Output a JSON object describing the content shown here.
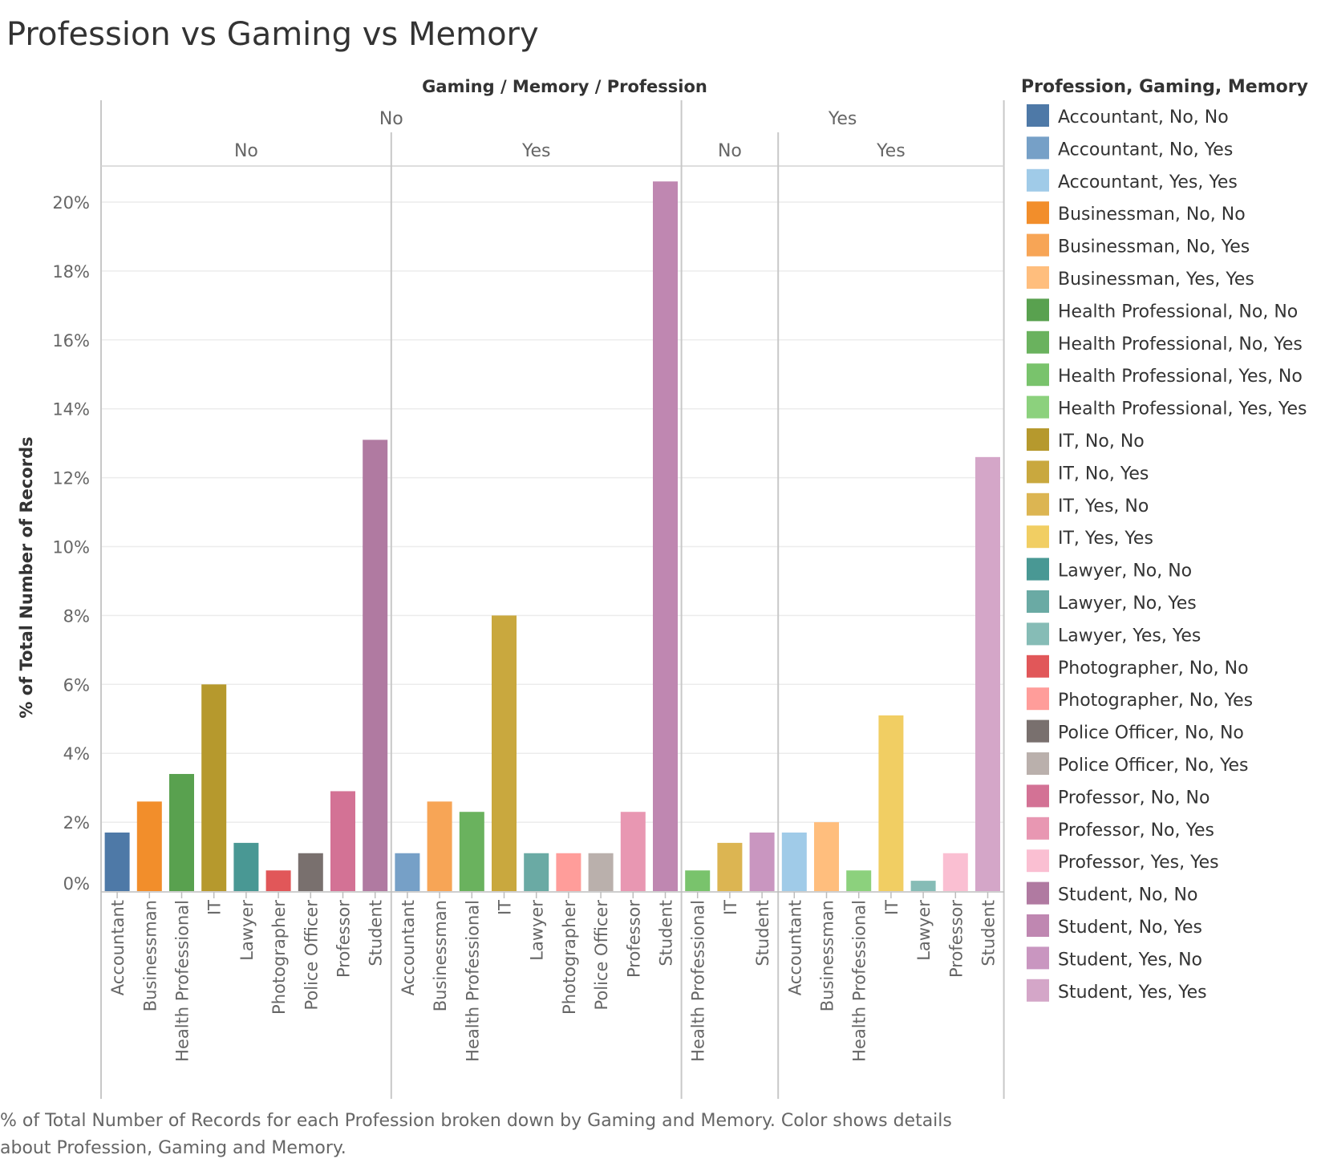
{
  "title": "Profession vs Gaming vs Memory",
  "header": {
    "column_title": "Gaming  /  Memory  /  Profession"
  },
  "caption": {
    "line1": "% of Total Number of Records for each Profession broken down by Gaming and Memory.  Color shows details",
    "line2": "about Profession, Gaming and Memory."
  },
  "legend_title": "Profession, Gaming, Memory",
  "chart_data": {
    "type": "bar",
    "title": "Profession vs Gaming vs Memory",
    "ylabel": "% of Total Number of Records",
    "xlabel": "",
    "ylim": [
      0,
      21
    ],
    "y_ticks": [
      0,
      2,
      4,
      6,
      8,
      10,
      12,
      14,
      16,
      18,
      20
    ],
    "y_tick_labels": [
      "0%",
      "2%",
      "4%",
      "6%",
      "8%",
      "10%",
      "12%",
      "14%",
      "16%",
      "18%",
      "20%"
    ],
    "grid": true,
    "legend_position": "right",
    "column_header_levels": [
      "Gaming",
      "Memory",
      "Profession"
    ],
    "panels": [
      {
        "gaming": "No",
        "memory": "No",
        "bars": [
          {
            "profession": "Accountant",
            "value": 1.7,
            "color": "#4e79a7"
          },
          {
            "profession": "Businessman",
            "value": 2.6,
            "color": "#f28e2b"
          },
          {
            "profession": "Health Professional",
            "value": 3.4,
            "color": "#59a14f"
          },
          {
            "profession": "IT",
            "value": 6.0,
            "color": "#b6992d"
          },
          {
            "profession": "Lawyer",
            "value": 1.4,
            "color": "#499894"
          },
          {
            "profession": "Photographer",
            "value": 0.6,
            "color": "#e15759"
          },
          {
            "profession": "Police Officer",
            "value": 1.1,
            "color": "#79706e"
          },
          {
            "profession": "Professor",
            "value": 2.9,
            "color": "#d37295"
          },
          {
            "profession": "Student",
            "value": 13.1,
            "color": "#b07aa1"
          }
        ]
      },
      {
        "gaming": "No",
        "memory": "Yes",
        "bars": [
          {
            "profession": "Accountant",
            "value": 1.1,
            "color": "#76a0c7"
          },
          {
            "profession": "Businessman",
            "value": 2.6,
            "color": "#f7a556"
          },
          {
            "profession": "Health Professional",
            "value": 2.3,
            "color": "#6ab25e"
          },
          {
            "profession": "IT",
            "value": 8.0,
            "color": "#c9a83e"
          },
          {
            "profession": "Lawyer",
            "value": 1.1,
            "color": "#6aaaa4"
          },
          {
            "profession": "Photographer",
            "value": 1.1,
            "color": "#ff9d9a"
          },
          {
            "profession": "Police Officer",
            "value": 1.1,
            "color": "#bab0ac"
          },
          {
            "profession": "Professor",
            "value": 2.3,
            "color": "#e897b2"
          },
          {
            "profession": "Student",
            "value": 20.6,
            "color": "#bf87b1"
          }
        ]
      },
      {
        "gaming": "Yes",
        "memory": "No",
        "bars": [
          {
            "profession": "Health Professional",
            "value": 0.6,
            "color": "#79c36c"
          },
          {
            "profession": "IT",
            "value": 1.4,
            "color": "#dcb552"
          },
          {
            "profession": "Student",
            "value": 1.7,
            "color": "#c996c0"
          }
        ]
      },
      {
        "gaming": "Yes",
        "memory": "Yes",
        "bars": [
          {
            "profession": "Accountant",
            "value": 1.7,
            "color": "#a0cbe8"
          },
          {
            "profession": "Businessman",
            "value": 2.0,
            "color": "#ffbe7d"
          },
          {
            "profession": "Health Professional",
            "value": 0.6,
            "color": "#8cd17d"
          },
          {
            "profession": "IT",
            "value": 5.1,
            "color": "#f1ce63"
          },
          {
            "profession": "Lawyer",
            "value": 0.3,
            "color": "#86bcb6"
          },
          {
            "profession": "Professor",
            "value": 1.1,
            "color": "#fabfd2"
          },
          {
            "profession": "Student",
            "value": 12.6,
            "color": "#d4a6c8"
          }
        ]
      }
    ],
    "legend": [
      {
        "label": "Accountant, No, No",
        "color": "#4e79a7"
      },
      {
        "label": "Accountant, No, Yes",
        "color": "#76a0c7"
      },
      {
        "label": "Accountant, Yes, Yes",
        "color": "#a0cbe8"
      },
      {
        "label": "Businessman, No, No",
        "color": "#f28e2b"
      },
      {
        "label": "Businessman, No, Yes",
        "color": "#f7a556"
      },
      {
        "label": "Businessman, Yes, Yes",
        "color": "#ffbe7d"
      },
      {
        "label": "Health Professional, No, No",
        "color": "#59a14f"
      },
      {
        "label": "Health Professional, No, Yes",
        "color": "#6ab25e"
      },
      {
        "label": "Health Professional, Yes, No",
        "color": "#79c36c"
      },
      {
        "label": "Health Professional, Yes, Yes",
        "color": "#8cd17d"
      },
      {
        "label": "IT, No, No",
        "color": "#b6992d"
      },
      {
        "label": "IT, No, Yes",
        "color": "#c9a83e"
      },
      {
        "label": "IT, Yes, No",
        "color": "#dcb552"
      },
      {
        "label": "IT, Yes, Yes",
        "color": "#f1ce63"
      },
      {
        "label": "Lawyer, No, No",
        "color": "#499894"
      },
      {
        "label": "Lawyer, No, Yes",
        "color": "#6aaaa4"
      },
      {
        "label": "Lawyer, Yes, Yes",
        "color": "#86bcb6"
      },
      {
        "label": "Photographer, No, No",
        "color": "#e15759"
      },
      {
        "label": "Photographer, No, Yes",
        "color": "#ff9d9a"
      },
      {
        "label": "Police Officer, No, No",
        "color": "#79706e"
      },
      {
        "label": "Police Officer, No, Yes",
        "color": "#bab0ac"
      },
      {
        "label": "Professor, No, No",
        "color": "#d37295"
      },
      {
        "label": "Professor, No, Yes",
        "color": "#e897b2"
      },
      {
        "label": "Professor, Yes, Yes",
        "color": "#fabfd2"
      },
      {
        "label": "Student, No, No",
        "color": "#b07aa1"
      },
      {
        "label": "Student, No, Yes",
        "color": "#bf87b1"
      },
      {
        "label": "Student, Yes, No",
        "color": "#c996c0"
      },
      {
        "label": "Student, Yes, Yes",
        "color": "#d4a6c8"
      }
    ]
  }
}
